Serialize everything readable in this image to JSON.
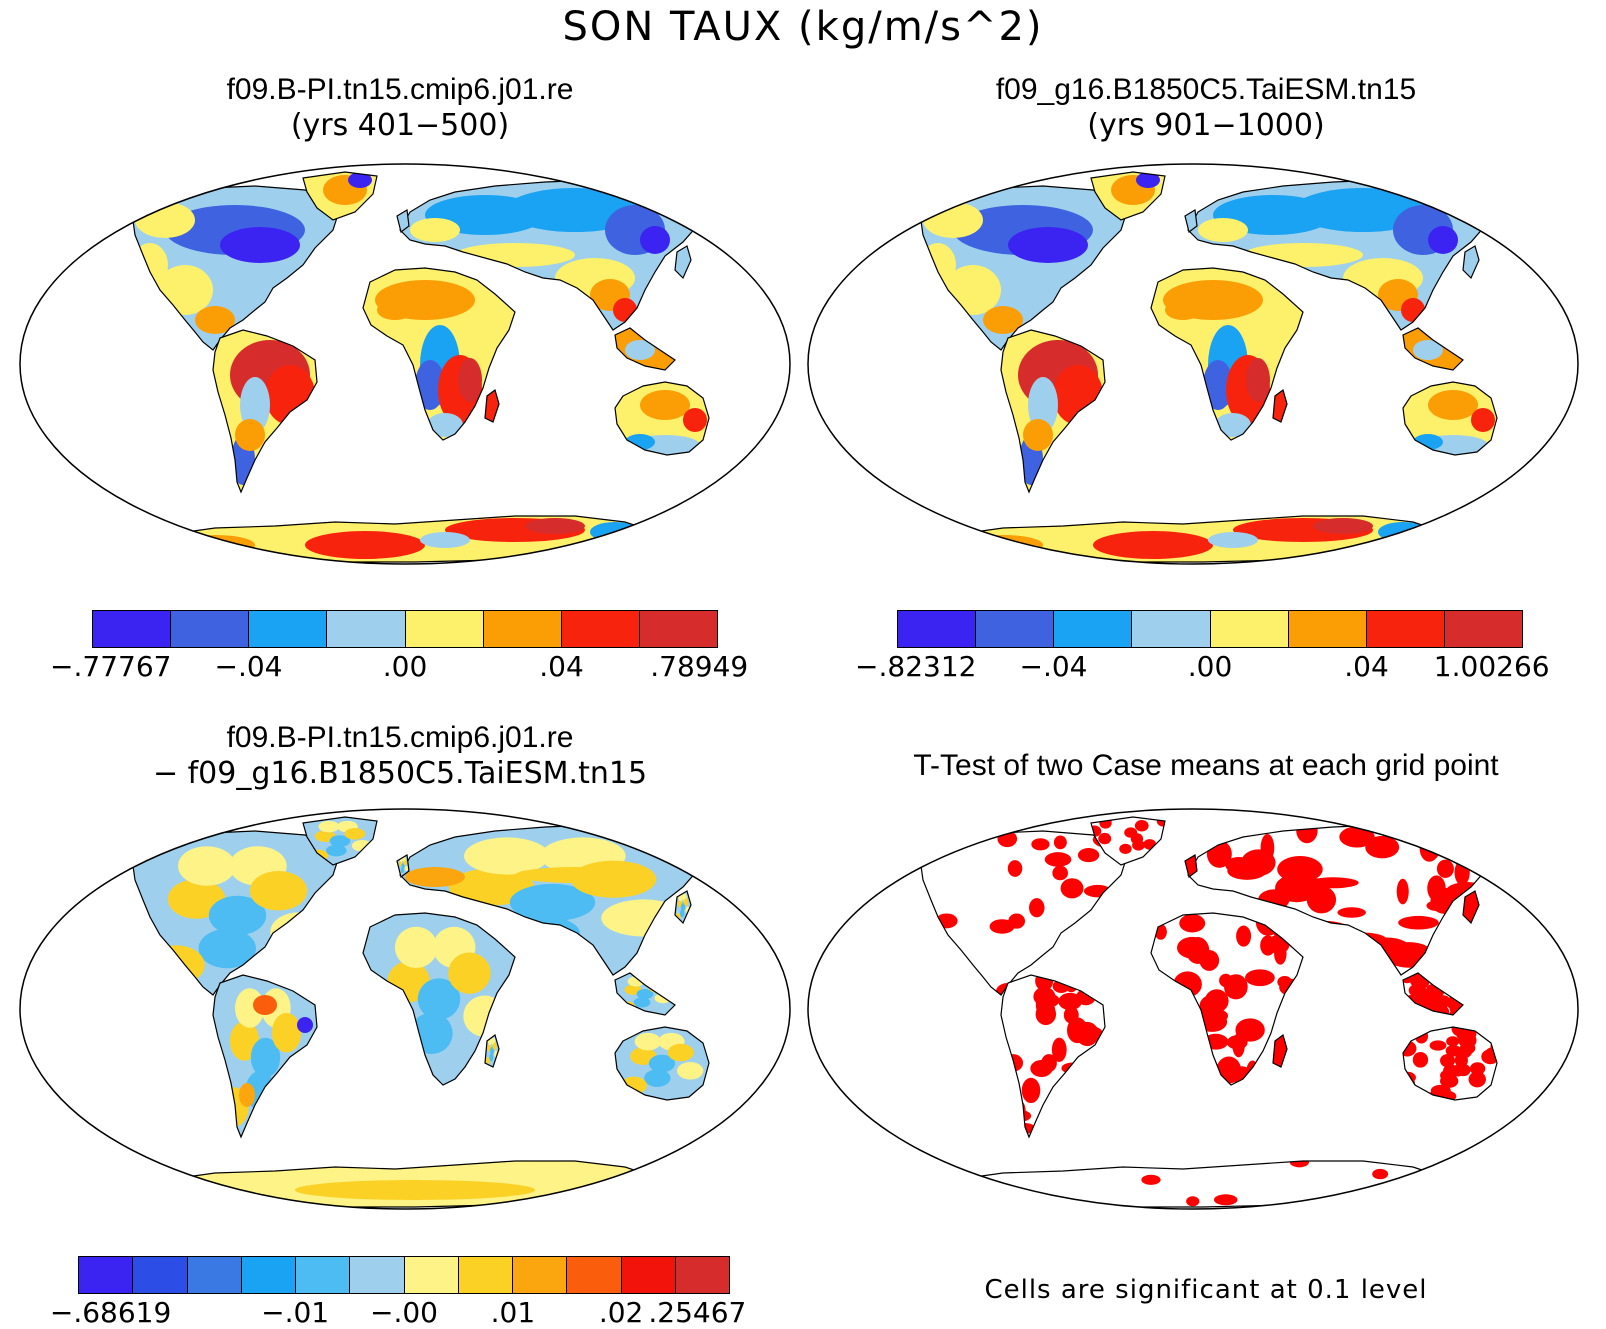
{
  "title": "SON TAUX (kg/m/s^2)",
  "panels": [
    {
      "line1": "f09.B-PI.tn15.cmip6.j01.re",
      "line2": "(yrs 401−500)",
      "colorbar": {
        "colors": [
          "#3b23f2",
          "#3f63e0",
          "#1aa2f3",
          "#9ed0ee",
          "#fdf06a",
          "#fb9e05",
          "#f8230d",
          "#d62c2c"
        ],
        "labels": [
          "−.77767",
          "−.04",
          ".00",
          ".04",
          ".78949"
        ]
      }
    },
    {
      "line1": "f09_g16.B1850C5.TaiESM.tn15",
      "line2": "(yrs 901−1000)",
      "colorbar": {
        "colors": [
          "#3b23f2",
          "#3f63e0",
          "#1aa2f3",
          "#9ed0ee",
          "#fdf06a",
          "#fb9e05",
          "#f8230d",
          "#d62c2c"
        ],
        "labels": [
          "−.82312",
          "−.04",
          ".00",
          ".04",
          "1.00266"
        ]
      }
    },
    {
      "line1": "f09.B-PI.tn15.cmip6.j01.re",
      "line2": "− f09_g16.B1850C5.TaiESM.tn15",
      "colorbar": {
        "colors": [
          "#3b23f2",
          "#2d4ee6",
          "#3a78e3",
          "#1aa2f3",
          "#4dbcf2",
          "#9ed0ee",
          "#fdf387",
          "#fbd126",
          "#fba60f",
          "#fa5e0c",
          "#f2130a",
          "#d62c2c"
        ],
        "labels": [
          "−.68619",
          "−.01",
          "−.00",
          ".01",
          ".02",
          ".25467"
        ]
      }
    },
    {
      "line1": "T-Test of two Case means at each grid point",
      "note": "Cells are significant at 0.1 level"
    }
  ]
}
